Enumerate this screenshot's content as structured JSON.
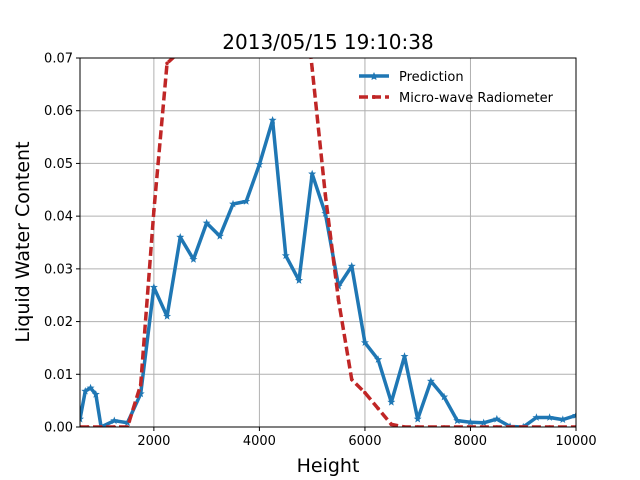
{
  "chart_data": {
    "type": "line",
    "title": "2013/05/15 19:10:38",
    "xlabel": "Height",
    "ylabel": "Liquid Water Content",
    "xlim": [
      600,
      10000
    ],
    "ylim": [
      0,
      0.07
    ],
    "x_ticks": [
      2000,
      4000,
      6000,
      8000,
      10000
    ],
    "y_ticks": [
      0.0,
      0.01,
      0.02,
      0.03,
      0.04,
      0.05,
      0.06,
      0.07
    ],
    "x_tick_labels": [
      "2000",
      "4000",
      "6000",
      "8000",
      "10000"
    ],
    "y_tick_labels": [
      "0.00",
      "0.01",
      "0.02",
      "0.03",
      "0.04",
      "0.05",
      "0.06",
      "0.07"
    ],
    "grid": true,
    "legend_position": "top-right",
    "series": [
      {
        "name": "Prediction",
        "color": "#1f77b4",
        "style": "solid",
        "marker": "star",
        "x": [
          600,
          700,
          800,
          900,
          1000,
          1250,
          1500,
          1750,
          2000,
          2250,
          2500,
          2750,
          3000,
          3250,
          3500,
          3750,
          4000,
          4250,
          4500,
          4750,
          5000,
          5250,
          5500,
          5750,
          6000,
          6250,
          6500,
          6750,
          7000,
          7250,
          7500,
          7750,
          8000,
          8250,
          8500,
          8750,
          9000,
          9250,
          9500,
          9750,
          10000
        ],
        "y": [
          0.0015,
          0.0068,
          0.0074,
          0.0062,
          0.0,
          0.0012,
          0.0008,
          0.0063,
          0.0265,
          0.021,
          0.036,
          0.0318,
          0.0387,
          0.0362,
          0.0423,
          0.0428,
          0.0498,
          0.0582,
          0.0325,
          0.0278,
          0.048,
          0.0405,
          0.0267,
          0.0305,
          0.016,
          0.0128,
          0.0047,
          0.0134,
          0.0015,
          0.0087,
          0.0057,
          0.0012,
          0.0009,
          0.0008,
          0.0015,
          0.0001,
          0.0,
          0.0018,
          0.0018,
          0.0014,
          0.0022
        ]
      },
      {
        "name": "Micro-wave Radiometer",
        "color": "#c02626",
        "style": "dashed",
        "marker": "circle",
        "x": [
          600,
          750,
          1000,
          1250,
          1500,
          1750,
          2000,
          2250,
          4750,
          5000,
          5250,
          5500,
          5750,
          6000,
          6250,
          6500,
          6750,
          7000,
          7500,
          8000,
          8500,
          9000,
          9500,
          10000
        ],
        "y": [
          0.0,
          0.0,
          0.0,
          0.0,
          0.0,
          0.008,
          0.041,
          0.069,
          0.092,
          0.068,
          0.044,
          0.024,
          0.009,
          0.0065,
          0.0035,
          0.0005,
          0.0,
          0.0,
          0.0,
          0.0,
          0.0,
          0.0,
          0.0,
          0.0
        ]
      }
    ]
  }
}
